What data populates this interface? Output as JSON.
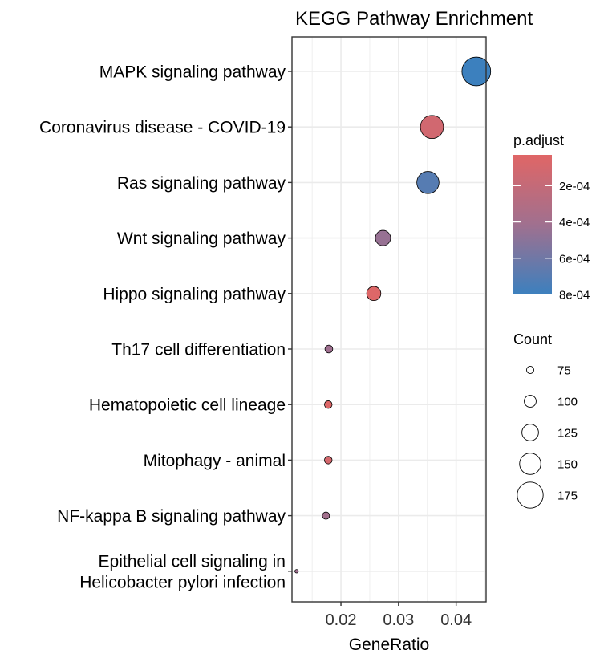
{
  "chart_data": {
    "type": "scatter",
    "title": "KEGG Pathway Enrichment",
    "xlabel": "GeneRatio",
    "ylabel": "",
    "xlim": [
      0.0115,
      0.0452
    ],
    "xticks": [
      "0.02",
      "0.03",
      "0.04"
    ],
    "xtick_values": [
      0.02,
      0.03,
      0.04
    ],
    "grid": true,
    "colors": {
      "low_padj": "#E06666",
      "high_padj": "#3C80BE"
    },
    "categories": [
      [
        "MAPK signaling pathway"
      ],
      [
        "Coronavirus disease - COVID-19"
      ],
      [
        "Ras signaling pathway"
      ],
      [
        "Wnt signaling pathway"
      ],
      [
        "Hippo signaling pathway"
      ],
      [
        "Th17 cell differentiation"
      ],
      [
        "Hematopoietic cell lineage"
      ],
      [
        "Mitophagy - animal"
      ],
      [
        "NF-kappa B signaling pathway"
      ],
      [
        "Epithelial cell signaling in",
        "Helicobacter pylori infection"
      ]
    ],
    "points": [
      {
        "gene_ratio": 0.0435,
        "count": 190,
        "p_adjust": 0.0008
      },
      {
        "gene_ratio": 0.0358,
        "count": 160,
        "p_adjust": 0.00012
      },
      {
        "gene_ratio": 0.0351,
        "count": 155,
        "p_adjust": 0.0007
      },
      {
        "gene_ratio": 0.0273,
        "count": 118,
        "p_adjust": 0.00045
      },
      {
        "gene_ratio": 0.0257,
        "count": 112,
        "p_adjust": 5e-05
      },
      {
        "gene_ratio": 0.0179,
        "count": 78,
        "p_adjust": 0.00042
      },
      {
        "gene_ratio": 0.0178,
        "count": 77,
        "p_adjust": 5e-05
      },
      {
        "gene_ratio": 0.0178,
        "count": 77,
        "p_adjust": 0.0001
      },
      {
        "gene_ratio": 0.0174,
        "count": 75,
        "p_adjust": 0.0004
      },
      {
        "gene_ratio": 0.0123,
        "count": 55,
        "p_adjust": 0.00042
      }
    ],
    "legend_color": {
      "title": "p.adjust",
      "labels": [
        "2e-04",
        "4e-04",
        "6e-04",
        "8e-04"
      ],
      "values": [
        0.0002,
        0.0004,
        0.0006,
        0.0008
      ],
      "range": [
        3e-05,
        0.0008
      ],
      "placement": "right"
    },
    "legend_size": {
      "title": "Count",
      "labels": [
        "75",
        "100",
        "125",
        "150",
        "175"
      ],
      "values": [
        75,
        100,
        125,
        150,
        175
      ],
      "placement": "right"
    }
  }
}
